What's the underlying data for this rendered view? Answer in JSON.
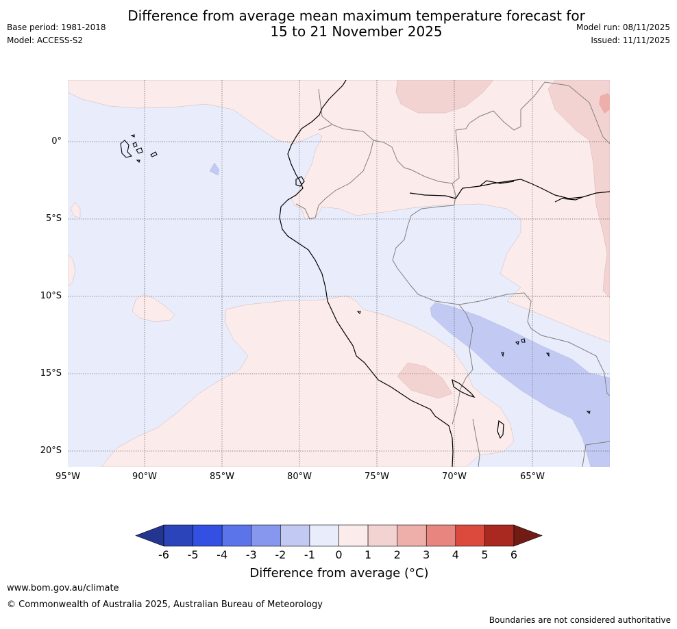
{
  "header": {
    "title_line1": "Difference from average mean maximum temperature forecast for",
    "title_line2": "15 to 21 November 2025",
    "base_period": "Base period: 1981-2018",
    "model": "Model: ACCESS-S2",
    "model_run": "Model run: 08/11/2025",
    "issued": "Issued: 11/11/2025"
  },
  "map": {
    "x_ticks": [
      "95°W",
      "90°W",
      "85°W",
      "80°W",
      "75°W",
      "70°W",
      "65°W"
    ],
    "y_ticks": [
      "0°",
      "5°S",
      "10°S",
      "15°S",
      "20°S"
    ],
    "colors": {
      "ocean_neutral": "#e8ecfb",
      "land_warm1": "#fbebea",
      "warm2": "#f3d3d2",
      "warm3": "#eeaeaa",
      "cool2": "#c2caf3",
      "coast": "#000000",
      "border": "#808080",
      "grid": "#555555"
    }
  },
  "colorbar": {
    "ticks": [
      "-6",
      "-5",
      "-4",
      "-3",
      "-2",
      "-1",
      "0",
      "1",
      "2",
      "3",
      "4",
      "5",
      "6"
    ],
    "colors": [
      "#23358f",
      "#2b44ba",
      "#3350e2",
      "#5c74ea",
      "#8697ed",
      "#c2caf3",
      "#e8ecfb",
      "#fbebea",
      "#f3d3d2",
      "#eeaeaa",
      "#e8857e",
      "#dc4a3e",
      "#a92921",
      "#701c15"
    ],
    "label": "Difference from average (°C)"
  },
  "footer": {
    "url": "www.bom.gov.au/climate",
    "copyright": "© Commonwealth of Australia 2025, Australian Bureau of Meteorology",
    "disclaimer": "Boundaries are not considered authoritative"
  }
}
